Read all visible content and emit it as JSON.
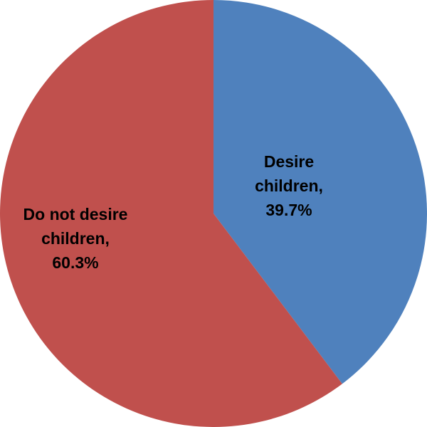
{
  "chart_data": {
    "type": "pie",
    "title": "",
    "start_angle_deg": 0,
    "direction": "clockwise",
    "legend": "none",
    "series": [
      {
        "values": [
          39.7,
          60.3
        ]
      }
    ],
    "slices": [
      {
        "label_lines": [
          "Desire",
          "children,",
          "39.7%"
        ],
        "value": 39.7,
        "color": "#4f81bd"
      },
      {
        "label_lines": [
          "Do not desire",
          "children,",
          "60.3%"
        ],
        "value": 60.3,
        "color": "#c0504d"
      }
    ]
  }
}
